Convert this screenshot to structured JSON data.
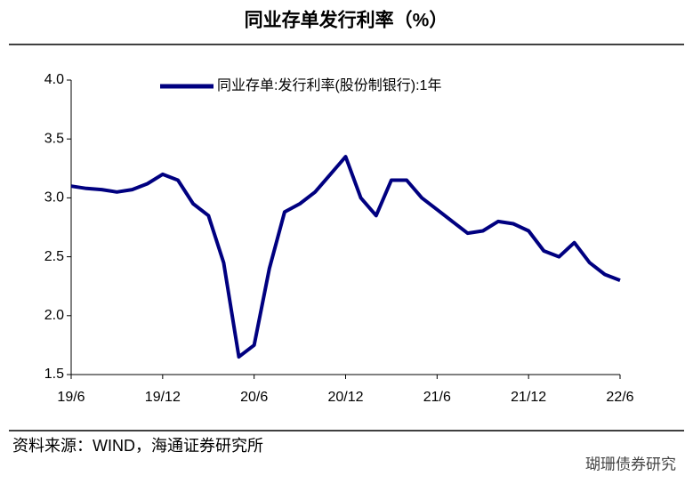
{
  "chart_data": {
    "type": "line",
    "title": "同业存单发行利率（%）",
    "source": "资料来源：WIND，海通证券研究所",
    "watermark": "瑚珊债券研究",
    "x": [
      "2019-06",
      "2019-07",
      "2019-08",
      "2019-09",
      "2019-10",
      "2019-11",
      "2019-12",
      "2020-01",
      "2020-02",
      "2020-03",
      "2020-04",
      "2020-05",
      "2020-06",
      "2020-07",
      "2020-08",
      "2020-09",
      "2020-10",
      "2020-11",
      "2020-12",
      "2021-01",
      "2021-02",
      "2021-03",
      "2021-04",
      "2021-05",
      "2021-06",
      "2021-07",
      "2021-08",
      "2021-09",
      "2021-10",
      "2021-11",
      "2021-12",
      "2022-01",
      "2022-02",
      "2022-03",
      "2022-04",
      "2022-05",
      "2022-06"
    ],
    "series": [
      {
        "name": "同业存单:发行利率(股份制银行):1年",
        "color": "#000080",
        "values": [
          3.1,
          3.08,
          3.07,
          3.05,
          3.07,
          3.12,
          3.2,
          3.15,
          2.95,
          2.85,
          2.45,
          1.65,
          1.75,
          2.4,
          2.88,
          2.95,
          3.05,
          3.2,
          3.35,
          3.0,
          2.85,
          3.15,
          3.15,
          3.0,
          2.9,
          2.8,
          2.7,
          2.72,
          2.8,
          2.78,
          2.72,
          2.55,
          2.5,
          2.62,
          2.45,
          2.35,
          2.3
        ]
      }
    ],
    "xlim": [
      "2019-06",
      "2022-06"
    ],
    "xticks": [
      {
        "value": "2019-06",
        "label": "19/6"
      },
      {
        "value": "2019-12",
        "label": "19/12"
      },
      {
        "value": "2020-06",
        "label": "20/6"
      },
      {
        "value": "2020-12",
        "label": "20/12"
      },
      {
        "value": "2021-06",
        "label": "21/6"
      },
      {
        "value": "2021-12",
        "label": "21/12"
      },
      {
        "value": "2022-06",
        "label": "22/6"
      }
    ],
    "ylim": [
      1.5,
      4.0
    ],
    "yticks": [
      {
        "value": 1.5,
        "label": "1.5"
      },
      {
        "value": 2,
        "label": "2.0"
      },
      2.5,
      {
        "value": 3,
        "label": "3.0"
      },
      3.5,
      {
        "value": 4,
        "label": "4.0"
      }
    ],
    "legend": "top-left"
  }
}
